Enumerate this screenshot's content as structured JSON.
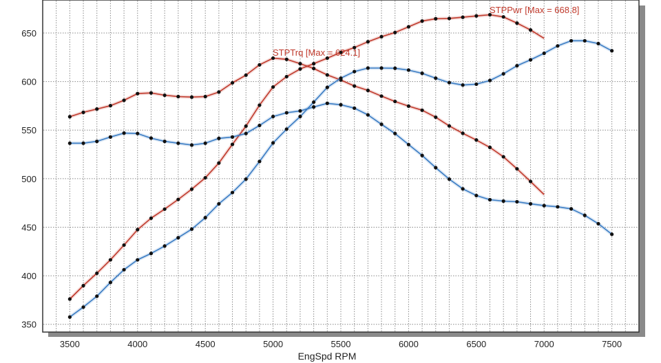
{
  "chart_data": {
    "type": "line",
    "xlabel": "EngSpd RPM",
    "ylabel": "",
    "xlim": [
      3300,
      7700
    ],
    "ylim": [
      342,
      684
    ],
    "xticks": [
      3500,
      4000,
      4500,
      5000,
      5500,
      6000,
      6500,
      7000,
      7500
    ],
    "yticks": [
      350,
      400,
      450,
      500,
      550,
      600,
      650
    ],
    "grid": true,
    "colors": {
      "red": "#c0392b",
      "blue": "#3a7cc4",
      "marker": "#111111"
    },
    "annotations": [
      {
        "text": "STPTrq [Max = 624.1]",
        "color": "#c0392b",
        "x": 5000,
        "y": 624.1
      },
      {
        "text": "STPPwr [Max = 668.8]",
        "color": "#c0392b",
        "x": 6600,
        "y": 668.8
      }
    ],
    "series": [
      {
        "color": "#c0392b",
        "x": [
          3500,
          3600,
          3700,
          3800,
          3900,
          4000,
          4100,
          4200,
          4300,
          4400,
          4500,
          4600,
          4700,
          4800,
          4900,
          5000,
          5100,
          5200,
          5300,
          5400,
          5500,
          5600,
          5700,
          5800,
          5900,
          6000,
          6100,
          6200,
          6300,
          6400,
          6500,
          6600,
          6700,
          6800,
          6900,
          7000
        ],
        "y": [
          563.8,
          568.3,
          571.7,
          575.2,
          580.7,
          587.6,
          588.3,
          585.9,
          584.5,
          584.0,
          584.5,
          589.2,
          598.7,
          606.6,
          617.2,
          624.1,
          622.9,
          618.4,
          613.5,
          606.8,
          601.6,
          595.4,
          590.9,
          585.0,
          579.5,
          574.7,
          570.5,
          563.3,
          554.3,
          546.7,
          539.8,
          532.2,
          522.5,
          510.1,
          497.1,
          483.6
        ]
      },
      {
        "color": "#c0392b",
        "x": [
          3500,
          3600,
          3700,
          3800,
          3900,
          4000,
          4100,
          4200,
          4300,
          4400,
          4500,
          4600,
          4700,
          4800,
          4900,
          5000,
          5100,
          5200,
          5300,
          5400,
          5500,
          5600,
          5700,
          5800,
          5900,
          6000,
          6100,
          6200,
          6300,
          6400,
          6500,
          6600,
          6700,
          6800,
          6900,
          7000
        ],
        "y": [
          376.0,
          389.8,
          402.6,
          416.4,
          431.6,
          447.5,
          459.3,
          468.6,
          478.6,
          489.2,
          500.9,
          516.1,
          535.3,
          554.1,
          575.7,
          594.4,
          605.1,
          613.0,
          618.4,
          624.1,
          630.1,
          635.0,
          641.0,
          646.2,
          650.5,
          656.4,
          662.3,
          664.7,
          665.0,
          666.2,
          667.6,
          668.8,
          666.6,
          660.2,
          653.1,
          644.5
        ]
      },
      {
        "color": "#3a7cc4",
        "x": [
          3500,
          3600,
          3700,
          3800,
          3900,
          4000,
          4100,
          4200,
          4300,
          4400,
          4500,
          4600,
          4700,
          4800,
          4900,
          5000,
          5100,
          5200,
          5300,
          5400,
          5500,
          5600,
          5700,
          5800,
          5900,
          6000,
          6100,
          6200,
          6300,
          6400,
          6500,
          6600,
          6700,
          6800,
          6900,
          7000,
          7100,
          7200,
          7300,
          7400,
          7500
        ],
        "y": [
          536.5,
          536.5,
          538.4,
          542.9,
          546.9,
          546.5,
          541.7,
          538.4,
          536.5,
          534.6,
          536.5,
          541.5,
          542.9,
          546.5,
          554.8,
          564.0,
          567.9,
          569.8,
          573.8,
          577.6,
          576.1,
          572.6,
          565.7,
          556.0,
          546.5,
          535.1,
          523.9,
          511.3,
          499.5,
          489.5,
          482.6,
          478.3,
          476.9,
          476.2,
          474.1,
          472.2,
          471.0,
          468.9,
          462.2,
          453.6,
          442.7
        ]
      },
      {
        "color": "#3a7cc4",
        "x": [
          3500,
          3600,
          3700,
          3800,
          3900,
          4000,
          4100,
          4200,
          4300,
          4400,
          4500,
          4600,
          4700,
          4800,
          4900,
          5000,
          5100,
          5200,
          5300,
          5400,
          5500,
          5600,
          5700,
          5800,
          5900,
          6000,
          6100,
          6200,
          6300,
          6400,
          6500,
          6600,
          6700,
          6800,
          6900,
          7000,
          7100,
          7200,
          7300,
          7400,
          7500
        ],
        "y": [
          357.5,
          367.7,
          378.9,
          393.1,
          406.2,
          416.4,
          423.0,
          430.6,
          439.2,
          448.0,
          459.8,
          474.1,
          485.7,
          499.5,
          517.7,
          536.8,
          551.0,
          564.0,
          578.8,
          594.0,
          603.5,
          610.3,
          613.9,
          613.9,
          613.7,
          611.8,
          608.5,
          603.5,
          598.9,
          596.4,
          597.3,
          601.1,
          608.0,
          616.3,
          622.4,
          629.1,
          636.7,
          642.0,
          642.0,
          639.1,
          631.7
        ]
      }
    ]
  }
}
